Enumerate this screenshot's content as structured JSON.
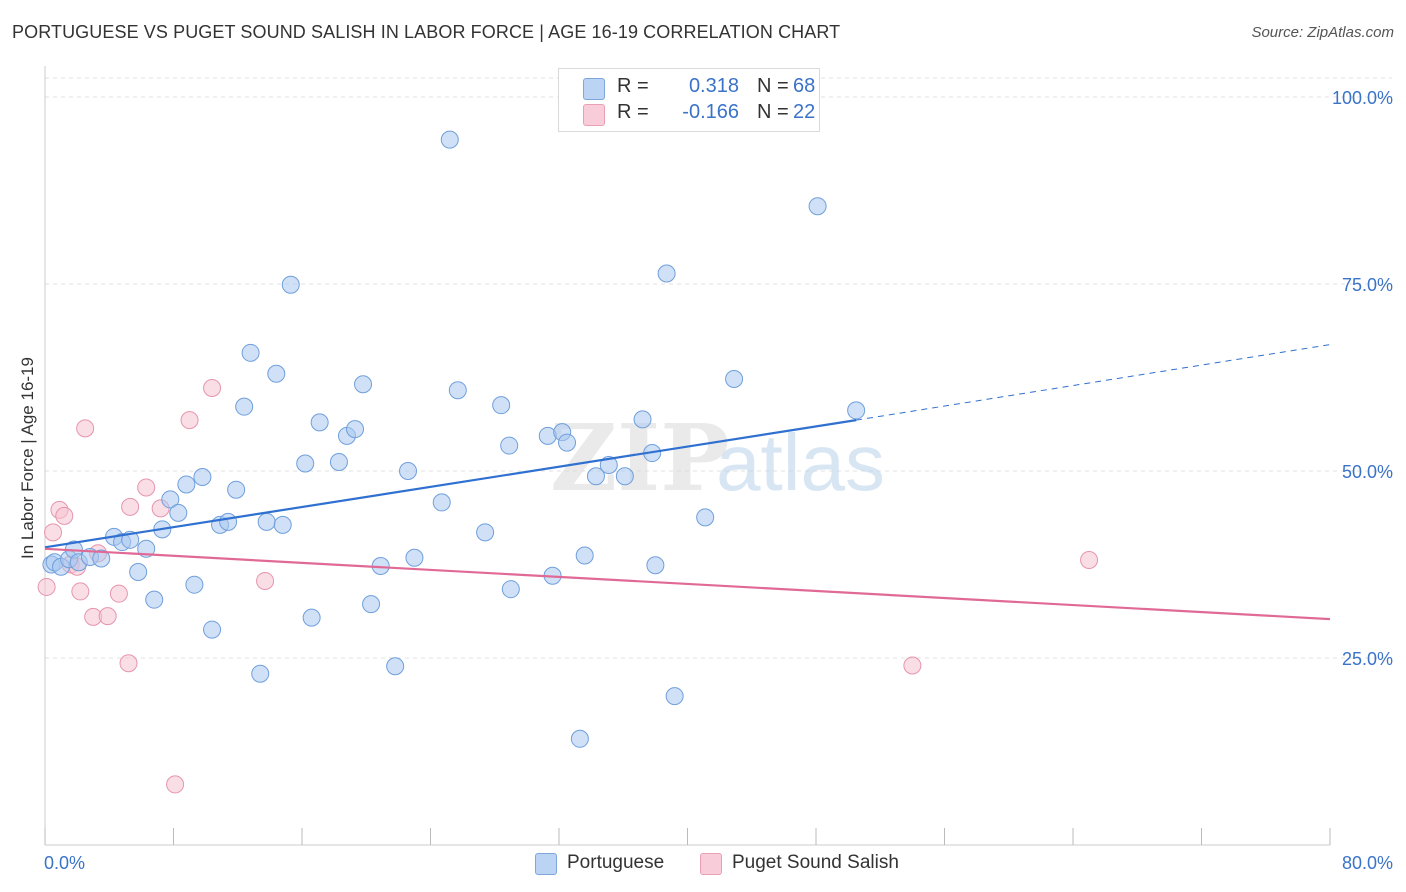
{
  "title": "PORTUGUESE VS PUGET SOUND SALISH IN LABOR FORCE | AGE 16-19 CORRELATION CHART",
  "source": "Source: ZipAtlas.com",
  "legend": {
    "rows": [
      {
        "r_label": "R =",
        "r_value": "0.318",
        "n_label": "N =",
        "n_value": "68"
      },
      {
        "r_label": "R =",
        "r_value": "-0.166",
        "n_label": "N =",
        "n_value": "22"
      }
    ]
  },
  "bottom_legend": [
    "Portuguese",
    "Puget Sound Salish"
  ],
  "colors": {
    "portuguese_fill": "#a9c8f0",
    "portuguese_stroke": "#6f9fdc",
    "portuguese_line": "#2f70d0",
    "salish_fill": "#f6c2d0",
    "salish_stroke": "#e695ae",
    "salish_line": "#e06a95",
    "tick_label": "#3a73c8",
    "grid": "#e0e0e0"
  },
  "chart_data": {
    "type": "scatter",
    "title": "PORTUGUESE VS PUGET SOUND SALISH IN LABOR FORCE | AGE 16-19 CORRELATION CHART",
    "xlabel": "",
    "ylabel": "In Labor Force | Age 16-19",
    "xlim": [
      0,
      80
    ],
    "ylim": [
      0,
      103
    ],
    "x_tick_labels": [
      "0.0%",
      "80.0%"
    ],
    "y_ticks": [
      25,
      50,
      75,
      100
    ],
    "y_tick_labels": [
      "25.0%",
      "50.0%",
      "75.0%",
      "100.0%"
    ],
    "grid": true,
    "legend_position": "top-center",
    "watermark": "ZIPatlas",
    "series": [
      {
        "name": "Portuguese",
        "r": 0.318,
        "n": 68,
        "trend": {
          "x0": 0,
          "y0": 39.8,
          "x1": 50.5,
          "y1": 56.8,
          "dashed_to_x": 80,
          "dashed_to_y": 66.9
        },
        "points": [
          [
            0.4,
            37.5
          ],
          [
            0.6,
            37.8
          ],
          [
            1.0,
            37.2
          ],
          [
            1.5,
            38.2
          ],
          [
            1.8,
            39.5
          ],
          [
            2.1,
            37.8
          ],
          [
            2.8,
            38.5
          ],
          [
            3.5,
            38.3
          ],
          [
            4.3,
            41.2
          ],
          [
            4.8,
            40.5
          ],
          [
            5.3,
            40.8
          ],
          [
            5.8,
            36.5
          ],
          [
            6.3,
            39.6
          ],
          [
            6.8,
            32.8
          ],
          [
            7.3,
            42.2
          ],
          [
            7.8,
            46.2
          ],
          [
            8.3,
            44.4
          ],
          [
            8.8,
            48.2
          ],
          [
            9.3,
            34.8
          ],
          [
            9.8,
            49.2
          ],
          [
            10.4,
            28.8
          ],
          [
            10.9,
            42.8
          ],
          [
            11.4,
            43.2
          ],
          [
            11.9,
            47.5
          ],
          [
            12.4,
            58.6
          ],
          [
            12.8,
            65.8
          ],
          [
            13.4,
            22.9
          ],
          [
            13.8,
            43.2
          ],
          [
            14.4,
            63.0
          ],
          [
            14.8,
            42.8
          ],
          [
            15.3,
            74.9
          ],
          [
            16.2,
            51.0
          ],
          [
            16.6,
            30.4
          ],
          [
            17.1,
            56.5
          ],
          [
            18.3,
            51.2
          ],
          [
            18.8,
            54.7
          ],
          [
            19.3,
            55.6
          ],
          [
            19.8,
            61.6
          ],
          [
            20.3,
            32.2
          ],
          [
            20.9,
            37.3
          ],
          [
            21.8,
            23.9
          ],
          [
            22.6,
            50.0
          ],
          [
            23.0,
            38.4
          ],
          [
            24.7,
            45.8
          ],
          [
            25.2,
            94.3
          ],
          [
            25.7,
            60.8
          ],
          [
            27.4,
            41.8
          ],
          [
            28.4,
            58.8
          ],
          [
            28.9,
            53.4
          ],
          [
            29.0,
            34.2
          ],
          [
            31.3,
            54.7
          ],
          [
            31.6,
            36.0
          ],
          [
            32.2,
            55.2
          ],
          [
            32.5,
            53.8
          ],
          [
            33.6,
            38.7
          ],
          [
            34.3,
            49.3
          ],
          [
            35.1,
            50.8
          ],
          [
            36.1,
            49.3
          ],
          [
            37.2,
            56.9
          ],
          [
            37.8,
            52.4
          ],
          [
            38.0,
            37.4
          ],
          [
            38.7,
            76.4
          ],
          [
            39.2,
            19.9
          ],
          [
            41.1,
            43.8
          ],
          [
            42.9,
            62.3
          ],
          [
            48.1,
            85.4
          ],
          [
            50.5,
            58.1
          ],
          [
            33.3,
            14.2
          ]
        ]
      },
      {
        "name": "Puget Sound Salish",
        "r": -0.166,
        "n": 22,
        "trend": {
          "x0": 0,
          "y0": 39.6,
          "x1": 80,
          "y1": 30.2
        },
        "points": [
          [
            0.1,
            34.5
          ],
          [
            0.5,
            41.8
          ],
          [
            0.9,
            44.8
          ],
          [
            1.2,
            44.0
          ],
          [
            1.6,
            37.5
          ],
          [
            2.0,
            37.2
          ],
          [
            2.2,
            33.9
          ],
          [
            2.5,
            55.7
          ],
          [
            3.0,
            30.5
          ],
          [
            3.3,
            39.0
          ],
          [
            3.9,
            30.6
          ],
          [
            4.6,
            33.6
          ],
          [
            5.2,
            24.3
          ],
          [
            5.3,
            45.2
          ],
          [
            6.3,
            47.8
          ],
          [
            7.2,
            45.0
          ],
          [
            8.1,
            8.1
          ],
          [
            9.0,
            56.8
          ],
          [
            10.4,
            61.1
          ],
          [
            13.7,
            35.3
          ],
          [
            54.0,
            24.0
          ],
          [
            65.0,
            38.1
          ]
        ]
      }
    ]
  }
}
